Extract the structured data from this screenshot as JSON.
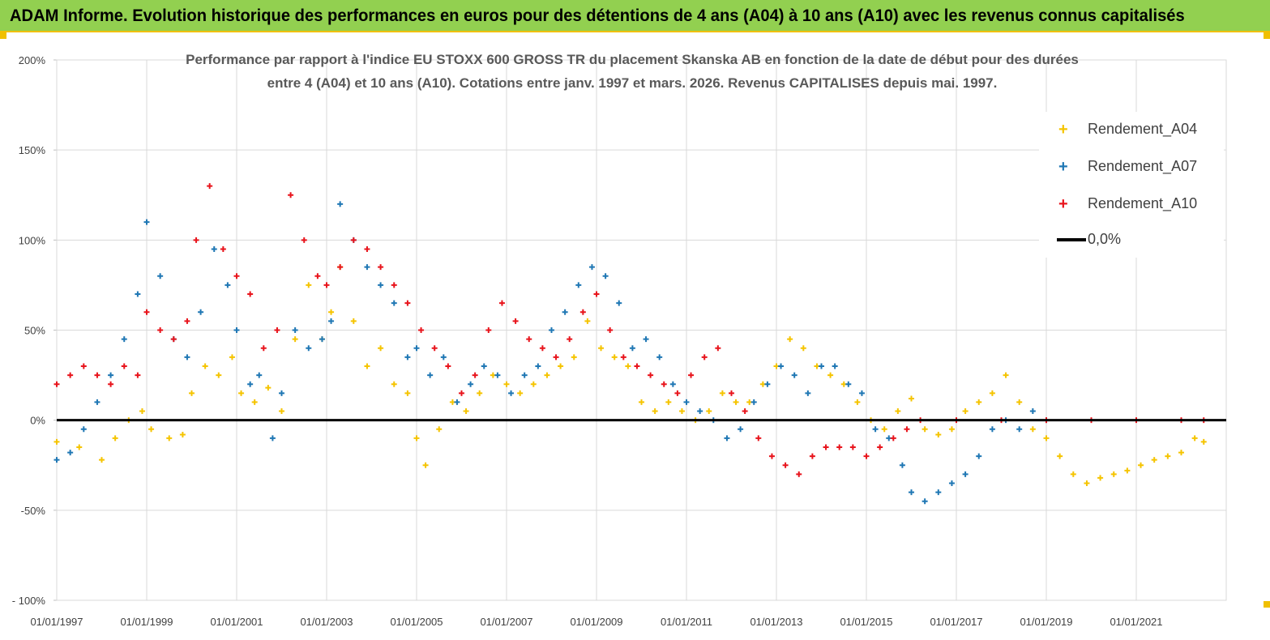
{
  "banner": {
    "title": "ADAM Informe. Evolution historique des performances en euros pour des détentions de 4 ans (A04) à 10 ans (A10) avec les revenus connus capitalisés"
  },
  "colors": {
    "banner_bg": "#92d050",
    "banner_border": "#f0c000",
    "a04": "#f5c400",
    "a07": "#1f77b4",
    "a10": "#e8141c",
    "zero_line": "#000000"
  },
  "chart_data": {
    "type": "scatter",
    "title_line1": "Performance par rapport à l'indice EU STOXX 600 GROSS TR  du placement Skanska AB en fonction de la date de début pour des durées",
    "title_line2": "entre 4 (A04) et 10 ans (A10).  Cotations entre janv. 1997 et mars. 2026. Revenus CAPITALISES depuis mai. 1997.",
    "x_start": 1997.0,
    "x_end": 2023.0,
    "ylim": [
      -100,
      200
    ],
    "y_ticks": [
      {
        "value": 200,
        "label": "200%"
      },
      {
        "value": 150,
        "label": "150%"
      },
      {
        "value": 100,
        "label": "100%"
      },
      {
        "value": 50,
        "label": "50%"
      },
      {
        "value": 0,
        "label": "0%"
      },
      {
        "value": -50,
        "label": "-50%"
      },
      {
        "value": -100,
        "label": "- 100%"
      }
    ],
    "x_ticks": [
      {
        "value": 1997,
        "label": "01/01/1997"
      },
      {
        "value": 1999,
        "label": "01/01/1999"
      },
      {
        "value": 2001,
        "label": "01/01/2001"
      },
      {
        "value": 2003,
        "label": "01/01/2003"
      },
      {
        "value": 2005,
        "label": "01/01/2005"
      },
      {
        "value": 2007,
        "label": "01/01/2007"
      },
      {
        "value": 2009,
        "label": "01/01/2009"
      },
      {
        "value": 2011,
        "label": "01/01/2011"
      },
      {
        "value": 2013,
        "label": "01/01/2013"
      },
      {
        "value": 2015,
        "label": "01/01/2015"
      },
      {
        "value": 2017,
        "label": "01/01/2017"
      },
      {
        "value": 2019,
        "label": "01/01/2019"
      },
      {
        "value": 2021,
        "label": "01/01/2021"
      }
    ],
    "grid": true,
    "legend_position": "top-right",
    "zero_line": {
      "name": "0,0%",
      "value": 0
    },
    "series": [
      {
        "name": "Rendement_A04",
        "color": "#f5c400",
        "x": [
          1997.0,
          1997.5,
          1998.0,
          1998.3,
          1998.6,
          1998.9,
          1999.1,
          1999.5,
          1999.8,
          2000.0,
          2000.3,
          2000.6,
          2000.9,
          2001.1,
          2001.4,
          2001.7,
          2002.0,
          2002.3,
          2002.6,
          2002.9,
          2003.1,
          2003.3,
          2003.6,
          2003.9,
          2004.2,
          2004.5,
          2004.8,
          2005.0,
          2005.2,
          2005.5,
          2005.8,
          2006.1,
          2006.4,
          2006.7,
          2007.0,
          2007.3,
          2007.6,
          2007.9,
          2008.2,
          2008.5,
          2008.8,
          2009.1,
          2009.4,
          2009.7,
          2010.0,
          2010.3,
          2010.6,
          2010.9,
          2011.2,
          2011.5,
          2011.8,
          2012.1,
          2012.4,
          2012.7,
          2013.0,
          2013.3,
          2013.6,
          2013.9,
          2014.2,
          2014.5,
          2014.8,
          2015.1,
          2015.4,
          2015.7,
          2016.0,
          2016.3,
          2016.6,
          2016.9,
          2017.2,
          2017.5,
          2017.8,
          2018.1,
          2018.4,
          2018.7,
          2019.0,
          2019.3,
          2019.6,
          2019.9,
          2020.2,
          2020.5,
          2020.8,
          2021.1,
          2021.4,
          2021.7,
          2022.0,
          2022.3,
          2022.5
        ],
        "y": [
          -12,
          -15,
          -22,
          -10,
          0,
          5,
          -5,
          -10,
          -8,
          15,
          30,
          25,
          35,
          15,
          10,
          18,
          5,
          45,
          75,
          45,
          60,
          85,
          55,
          30,
          40,
          20,
          15,
          -10,
          -25,
          -5,
          10,
          5,
          15,
          25,
          20,
          15,
          20,
          25,
          30,
          35,
          55,
          40,
          35,
          30,
          10,
          5,
          10,
          5,
          0,
          5,
          15,
          10,
          10,
          20,
          30,
          45,
          40,
          30,
          25,
          20,
          10,
          0,
          -5,
          5,
          12,
          -5,
          -8,
          -5,
          5,
          10,
          15,
          25,
          10,
          -5,
          -10,
          -20,
          -30,
          -35,
          -32,
          -30,
          -28,
          -25,
          -22,
          -20,
          -18,
          -10,
          -12
        ]
      },
      {
        "name": "Rendement_A07",
        "color": "#1f77b4",
        "x": [
          1997.0,
          1997.3,
          1997.6,
          1997.9,
          1998.2,
          1998.5,
          1998.8,
          1999.0,
          1999.3,
          1999.6,
          1999.9,
          2000.2,
          2000.5,
          2000.8,
          2001.0,
          2001.3,
          2001.5,
          2001.8,
          2002.0,
          2002.3,
          2002.6,
          2002.9,
          2003.1,
          2003.3,
          2003.6,
          2003.9,
          2004.2,
          2004.5,
          2004.8,
          2005.0,
          2005.3,
          2005.6,
          2005.9,
          2006.2,
          2006.5,
          2006.8,
          2007.1,
          2007.4,
          2007.7,
          2008.0,
          2008.3,
          2008.6,
          2008.9,
          2009.2,
          2009.5,
          2009.8,
          2010.1,
          2010.4,
          2010.7,
          2011.0,
          2011.3,
          2011.6,
          2011.9,
          2012.2,
          2012.5,
          2012.8,
          2013.1,
          2013.4,
          2013.7,
          2014.0,
          2014.3,
          2014.6,
          2014.9,
          2015.2,
          2015.5,
          2015.8,
          2016.0,
          2016.3,
          2016.6,
          2016.9,
          2017.2,
          2017.5,
          2017.8,
          2018.1,
          2018.4,
          2018.7,
          2019.0
        ],
        "y": [
          -22,
          -18,
          -5,
          10,
          25,
          45,
          70,
          110,
          80,
          45,
          35,
          60,
          95,
          75,
          50,
          20,
          25,
          -10,
          15,
          50,
          40,
          45,
          55,
          120,
          100,
          85,
          75,
          65,
          35,
          40,
          25,
          35,
          10,
          20,
          30,
          25,
          15,
          25,
          30,
          50,
          60,
          75,
          85,
          80,
          65,
          40,
          45,
          35,
          20,
          10,
          5,
          0,
          -10,
          -5,
          10,
          20,
          30,
          25,
          15,
          30,
          30,
          20,
          15,
          -5,
          -10,
          -25,
          -40,
          -45,
          -40,
          -35,
          -30,
          -20,
          -5,
          0,
          -5,
          5,
          0
        ]
      },
      {
        "name": "Rendement_A10",
        "color": "#e8141c",
        "x": [
          1997.0,
          1997.3,
          1997.6,
          1997.9,
          1998.2,
          1998.5,
          1998.8,
          1999.0,
          1999.3,
          1999.6,
          1999.9,
          2000.1,
          2000.4,
          2000.7,
          2001.0,
          2001.3,
          2001.6,
          2001.9,
          2002.2,
          2002.5,
          2002.8,
          2003.0,
          2003.3,
          2003.6,
          2003.9,
          2004.2,
          2004.5,
          2004.8,
          2005.1,
          2005.4,
          2005.7,
          2006.0,
          2006.3,
          2006.6,
          2006.9,
          2007.2,
          2007.5,
          2007.8,
          2008.1,
          2008.4,
          2008.7,
          2009.0,
          2009.3,
          2009.6,
          2009.9,
          2010.2,
          2010.5,
          2010.8,
          2011.1,
          2011.4,
          2011.7,
          2012.0,
          2012.3,
          2012.6,
          2012.9,
          2013.2,
          2013.5,
          2013.8,
          2014.1,
          2014.4,
          2014.7,
          2015.0,
          2015.3,
          2015.6,
          2015.9,
          2016.2,
          2017.0,
          2018.0,
          2019.0,
          2020.0,
          2021.0,
          2022.0,
          2022.5
        ],
        "y": [
          20,
          25,
          30,
          25,
          20,
          30,
          25,
          60,
          50,
          45,
          55,
          100,
          130,
          95,
          80,
          70,
          40,
          50,
          125,
          100,
          80,
          75,
          85,
          100,
          95,
          85,
          75,
          65,
          50,
          40,
          30,
          15,
          25,
          50,
          65,
          55,
          45,
          40,
          35,
          45,
          60,
          70,
          50,
          35,
          30,
          25,
          20,
          15,
          25,
          35,
          40,
          15,
          5,
          -10,
          -20,
          -25,
          -30,
          -20,
          -15,
          -15,
          -15,
          -20,
          -15,
          -10,
          -5,
          0,
          0,
          0,
          0,
          0,
          0,
          0,
          0
        ]
      }
    ]
  }
}
